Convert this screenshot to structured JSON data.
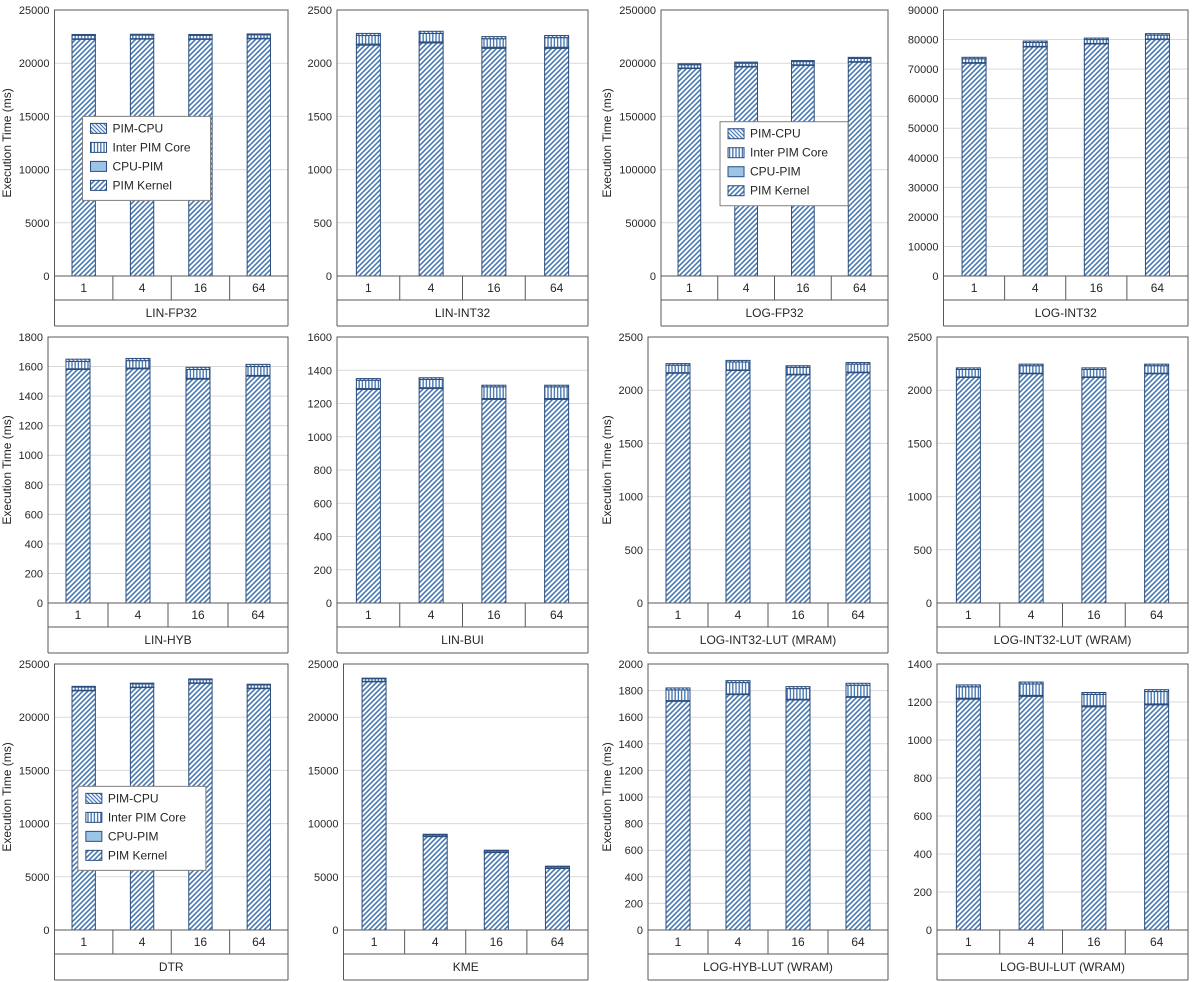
{
  "figure": {
    "background": "#ffffff",
    "ylabel_text": "Execution Time (ms)"
  },
  "colors": {
    "hatch": "#4a7ab5",
    "bar_border": "#2c4d7c",
    "cpu_pim_fill": "#9dc3e6",
    "grid": "#d9d9d9",
    "axis": "#595959",
    "text": "#262626",
    "legend_border": "#7f7f7f",
    "legend_bg": "#ffffff"
  },
  "legend": {
    "entries": [
      "PIM-CPU",
      "Inter PIM Core",
      "CPU-PIM",
      "PIM Kernel"
    ]
  },
  "chart_data": [
    {
      "type": "bar",
      "title": "LIN-FP32",
      "categories": [
        "1",
        "4",
        "16",
        "64"
      ],
      "ylim": [
        0,
        25000
      ],
      "ystep": 5000,
      "ylabel": "Execution Time (ms)",
      "series": [
        {
          "name": "PIM Kernel",
          "values": [
            22250,
            22270,
            22250,
            22300
          ]
        },
        {
          "name": "CPU-PIM",
          "values": [
            40,
            40,
            40,
            40
          ]
        },
        {
          "name": "Inter PIM Core",
          "values": [
            330,
            330,
            330,
            330
          ]
        },
        {
          "name": "PIM-CPU",
          "values": [
            80,
            80,
            80,
            80
          ]
        }
      ],
      "legend": {
        "show": true,
        "x": 0.12,
        "y": 0.4
      }
    },
    {
      "type": "bar",
      "title": "LIN-INT32",
      "categories": [
        "1",
        "4",
        "16",
        "64"
      ],
      "ylim": [
        0,
        2500
      ],
      "ystep": 500,
      "ylabel": "",
      "series": [
        {
          "name": "PIM Kernel",
          "values": [
            2170,
            2190,
            2140,
            2140
          ]
        },
        {
          "name": "CPU-PIM",
          "values": [
            10,
            10,
            10,
            10
          ]
        },
        {
          "name": "Inter PIM Core",
          "values": [
            80,
            80,
            80,
            90
          ]
        },
        {
          "name": "PIM-CPU",
          "values": [
            20,
            20,
            20,
            20
          ]
        }
      ],
      "legend": {
        "show": false
      }
    },
    {
      "type": "bar",
      "title": "LOG-FP32",
      "categories": [
        "1",
        "4",
        "16",
        "64"
      ],
      "ylim": [
        0,
        250000
      ],
      "ystep": 50000,
      "ylabel": "Execution Time (ms)",
      "series": [
        {
          "name": "PIM Kernel",
          "values": [
            195000,
            196500,
            198000,
            201000
          ]
        },
        {
          "name": "CPU-PIM",
          "values": [
            500,
            500,
            500,
            500
          ]
        },
        {
          "name": "Inter PIM Core",
          "values": [
            3000,
            3000,
            3000,
            3000
          ]
        },
        {
          "name": "PIM-CPU",
          "values": [
            1000,
            1000,
            1000,
            1000
          ]
        }
      ],
      "legend": {
        "show": true,
        "x": 0.26,
        "y": 0.42
      }
    },
    {
      "type": "bar",
      "title": "LOG-INT32",
      "categories": [
        "1",
        "4",
        "16",
        "64"
      ],
      "ylim": [
        0,
        90000
      ],
      "ystep": 10000,
      "ylabel": "",
      "series": [
        {
          "name": "PIM Kernel",
          "values": [
            72000,
            77500,
            78500,
            80000
          ]
        },
        {
          "name": "CPU-PIM",
          "values": [
            200,
            200,
            200,
            200
          ]
        },
        {
          "name": "Inter PIM Core",
          "values": [
            1300,
            1300,
            1300,
            1300
          ]
        },
        {
          "name": "PIM-CPU",
          "values": [
            500,
            500,
            500,
            500
          ]
        }
      ],
      "legend": {
        "show": false
      }
    },
    {
      "type": "bar",
      "title": "LIN-HYB",
      "categories": [
        "1",
        "4",
        "16",
        "64"
      ],
      "ylim": [
        0,
        1800
      ],
      "ystep": 200,
      "ylabel": "Execution Time (ms)",
      "series": [
        {
          "name": "PIM Kernel",
          "values": [
            1580,
            1585,
            1515,
            1535
          ]
        },
        {
          "name": "CPU-PIM",
          "values": [
            5,
            5,
            5,
            5
          ]
        },
        {
          "name": "Inter PIM Core",
          "values": [
            50,
            50,
            60,
            60
          ]
        },
        {
          "name": "PIM-CPU",
          "values": [
            15,
            15,
            15,
            15
          ]
        }
      ],
      "legend": {
        "show": false
      }
    },
    {
      "type": "bar",
      "title": "LIN-BUI",
      "categories": [
        "1",
        "4",
        "16",
        "64"
      ],
      "ylim": [
        0,
        1600
      ],
      "ystep": 200,
      "ylabel": "",
      "series": [
        {
          "name": "PIM Kernel",
          "values": [
            1285,
            1290,
            1225,
            1225
          ]
        },
        {
          "name": "CPU-PIM",
          "values": [
            5,
            5,
            5,
            5
          ]
        },
        {
          "name": "Inter PIM Core",
          "values": [
            50,
            50,
            70,
            70
          ]
        },
        {
          "name": "PIM-CPU",
          "values": [
            10,
            10,
            10,
            10
          ]
        }
      ],
      "legend": {
        "show": false
      }
    },
    {
      "type": "bar",
      "title": "LOG-INT32-LUT (MRAM)",
      "categories": [
        "1",
        "4",
        "16",
        "64"
      ],
      "ylim": [
        0,
        2500
      ],
      "ystep": 500,
      "ylabel": "Execution Time (ms)",
      "series": [
        {
          "name": "PIM Kernel",
          "values": [
            2160,
            2185,
            2145,
            2165
          ]
        },
        {
          "name": "CPU-PIM",
          "values": [
            5,
            5,
            5,
            5
          ]
        },
        {
          "name": "Inter PIM Core",
          "values": [
            70,
            75,
            65,
            75
          ]
        },
        {
          "name": "PIM-CPU",
          "values": [
            15,
            15,
            15,
            15
          ]
        }
      ],
      "legend": {
        "show": false
      }
    },
    {
      "type": "bar",
      "title": "LOG-INT32-LUT (WRAM)",
      "categories": [
        "1",
        "4",
        "16",
        "64"
      ],
      "ylim": [
        0,
        2500
      ],
      "ystep": 500,
      "ylabel": "",
      "series": [
        {
          "name": "PIM Kernel",
          "values": [
            2120,
            2155,
            2120,
            2155
          ]
        },
        {
          "name": "CPU-PIM",
          "values": [
            5,
            5,
            5,
            5
          ]
        },
        {
          "name": "Inter PIM Core",
          "values": [
            70,
            70,
            70,
            70
          ]
        },
        {
          "name": "PIM-CPU",
          "values": [
            15,
            15,
            15,
            15
          ]
        }
      ],
      "legend": {
        "show": false
      }
    },
    {
      "type": "bar",
      "title": "DTR",
      "categories": [
        "1",
        "4",
        "16",
        "64"
      ],
      "ylim": [
        0,
        25000
      ],
      "ystep": 5000,
      "ylabel": "Execution Time (ms)",
      "series": [
        {
          "name": "PIM Kernel",
          "values": [
            22500,
            22800,
            23200,
            22700
          ]
        },
        {
          "name": "CPU-PIM",
          "values": [
            30,
            30,
            30,
            30
          ]
        },
        {
          "name": "Inter PIM Core",
          "values": [
            300,
            300,
            300,
            300
          ]
        },
        {
          "name": "PIM-CPU",
          "values": [
            70,
            70,
            70,
            70
          ]
        }
      ],
      "legend": {
        "show": true,
        "x": 0.1,
        "y": 0.46
      }
    },
    {
      "type": "bar",
      "title": "KME",
      "categories": [
        "1",
        "4",
        "16",
        "64"
      ],
      "ylim": [
        0,
        25000
      ],
      "ystep": 5000,
      "ylabel": "",
      "series": [
        {
          "name": "PIM Kernel",
          "values": [
            23350,
            8800,
            7300,
            5800
          ]
        },
        {
          "name": "CPU-PIM",
          "values": [
            20,
            20,
            20,
            20
          ]
        },
        {
          "name": "Inter PIM Core",
          "values": [
            250,
            130,
            130,
            130
          ]
        },
        {
          "name": "PIM-CPU",
          "values": [
            50,
            50,
            50,
            50
          ]
        }
      ],
      "legend": {
        "show": false
      }
    },
    {
      "type": "bar",
      "title": "LOG-HYB-LUT (WRAM)",
      "categories": [
        "1",
        "4",
        "16",
        "64"
      ],
      "ylim": [
        0,
        2000
      ],
      "ystep": 200,
      "ylabel": "Execution Time (ms)",
      "series": [
        {
          "name": "PIM Kernel",
          "values": [
            1720,
            1770,
            1730,
            1750
          ]
        },
        {
          "name": "CPU-PIM",
          "values": [
            5,
            5,
            5,
            5
          ]
        },
        {
          "name": "Inter PIM Core",
          "values": [
            80,
            85,
            80,
            85
          ]
        },
        {
          "name": "PIM-CPU",
          "values": [
            15,
            15,
            15,
            15
          ]
        }
      ],
      "legend": {
        "show": false
      }
    },
    {
      "type": "bar",
      "title": "LOG-BUI-LUT (WRAM)",
      "categories": [
        "1",
        "4",
        "16",
        "64"
      ],
      "ylim": [
        0,
        1400
      ],
      "ystep": 200,
      "ylabel": "",
      "series": [
        {
          "name": "PIM Kernel",
          "values": [
            1215,
            1230,
            1175,
            1185
          ]
        },
        {
          "name": "CPU-PIM",
          "values": [
            5,
            5,
            5,
            5
          ]
        },
        {
          "name": "Inter PIM Core",
          "values": [
            60,
            60,
            60,
            65
          ]
        },
        {
          "name": "PIM-CPU",
          "values": [
            10,
            10,
            10,
            10
          ]
        }
      ],
      "legend": {
        "show": false
      }
    }
  ]
}
